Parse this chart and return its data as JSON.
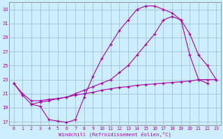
{
  "xlabel": "Windchill (Refroidissement éolien,°C)",
  "bg_color": "#cceeff",
  "line_color": "#aa00aa",
  "grid_color": "#99bbcc",
  "xlim": [
    -0.5,
    23.5
  ],
  "ylim": [
    16.5,
    34.0
  ],
  "yticks": [
    17,
    19,
    21,
    23,
    25,
    27,
    29,
    31,
    33
  ],
  "xticks": [
    0,
    1,
    2,
    3,
    4,
    5,
    6,
    7,
    8,
    9,
    10,
    11,
    12,
    13,
    14,
    15,
    16,
    17,
    18,
    19,
    20,
    21,
    22,
    23
  ],
  "line1_x": [
    0,
    1,
    2,
    3,
    4,
    5,
    6,
    7,
    8,
    9,
    10,
    11,
    12,
    13,
    14,
    15,
    16,
    17,
    18,
    19,
    20,
    21,
    22
  ],
  "line1_y": [
    22.5,
    20.8,
    19.5,
    19.2,
    17.3,
    17.1,
    16.9,
    17.3,
    20.5,
    23.5,
    26.0,
    28.0,
    30.0,
    31.5,
    33.0,
    33.5,
    33.5,
    33.0,
    32.5,
    31.5,
    26.5,
    23.0,
    22.5
  ],
  "line2_x": [
    2,
    3,
    4,
    5,
    6,
    7,
    8,
    9,
    10,
    11,
    12,
    13,
    14,
    15,
    16,
    17,
    18,
    19,
    20,
    21,
    22,
    23
  ],
  "line2_y": [
    19.5,
    19.8,
    20.0,
    20.3,
    20.5,
    21.0,
    21.5,
    22.0,
    22.5,
    23.0,
    24.0,
    25.0,
    26.5,
    28.0,
    29.5,
    31.5,
    32.0,
    31.5,
    29.5,
    26.5,
    25.0,
    23.0
  ],
  "line3_x": [
    0,
    1,
    2,
    3,
    4,
    5,
    6,
    7,
    8,
    9,
    10,
    11,
    12,
    13,
    14,
    15,
    16,
    17,
    18,
    19,
    20,
    21,
    22,
    23
  ],
  "line3_y": [
    22.5,
    21.0,
    20.0,
    20.0,
    20.2,
    20.3,
    20.5,
    20.8,
    21.0,
    21.2,
    21.5,
    21.7,
    21.9,
    22.0,
    22.2,
    22.3,
    22.4,
    22.5,
    22.6,
    22.7,
    22.8,
    23.0,
    23.0,
    23.0
  ]
}
